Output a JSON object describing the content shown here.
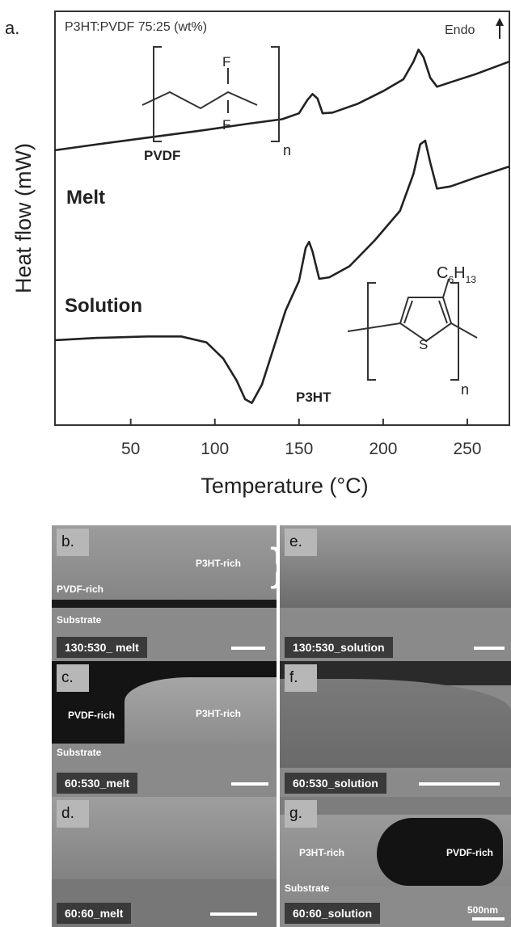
{
  "panel_a": {
    "letter": "a.",
    "composition_label": "P3HT:PVDF 75:25 (wt%)",
    "endo_label": "Endo",
    "pvdf_label": "PVDF",
    "p3ht_label": "P3HT",
    "melt_label": "Melt",
    "solution_label": "Solution",
    "pvdf_atom_f": "F",
    "n_subscript": "n",
    "c6h13_c": "C",
    "c6h13_6": "6",
    "c6h13_h": "H",
    "c6h13_13": "13",
    "thiophene_s": "S"
  },
  "chart_data": {
    "type": "line",
    "title": "P3HT:PVDF 75:25 (wt%)",
    "xlabel": "Temperature (°C)",
    "ylabel": "Heat flow (mW)",
    "xlim": [
      5,
      275
    ],
    "x_ticks": [
      50,
      100,
      150,
      200,
      250
    ],
    "y_ticks": [],
    "grid": false,
    "series": [
      {
        "name": "Melt",
        "points": [
          [
            5,
            -0.98
          ],
          [
            30,
            -0.9
          ],
          [
            60,
            -0.81
          ],
          [
            90,
            -0.72
          ],
          [
            120,
            -0.62
          ],
          [
            140,
            -0.56
          ],
          [
            150,
            -0.48
          ],
          [
            155,
            -0.3
          ],
          [
            158,
            -0.22
          ],
          [
            161,
            -0.28
          ],
          [
            164,
            -0.48
          ],
          [
            170,
            -0.47
          ],
          [
            185,
            -0.35
          ],
          [
            200,
            -0.18
          ],
          [
            212,
            -0.02
          ],
          [
            218,
            0.22
          ],
          [
            221,
            0.38
          ],
          [
            224,
            0.28
          ],
          [
            228,
            0.0
          ],
          [
            232,
            -0.12
          ],
          [
            240,
            -0.06
          ],
          [
            255,
            0.05
          ],
          [
            275,
            0.22
          ]
        ]
      },
      {
        "name": "Solution",
        "points": [
          [
            5,
            -3.55
          ],
          [
            30,
            -3.52
          ],
          [
            60,
            -3.5
          ],
          [
            80,
            -3.5
          ],
          [
            95,
            -3.58
          ],
          [
            105,
            -3.8
          ],
          [
            113,
            -4.1
          ],
          [
            118,
            -4.35
          ],
          [
            122,
            -4.4
          ],
          [
            128,
            -4.15
          ],
          [
            135,
            -3.65
          ],
          [
            142,
            -3.15
          ],
          [
            150,
            -2.75
          ],
          [
            154,
            -2.3
          ],
          [
            156,
            -2.22
          ],
          [
            158,
            -2.35
          ],
          [
            162,
            -2.72
          ],
          [
            168,
            -2.7
          ],
          [
            180,
            -2.55
          ],
          [
            195,
            -2.2
          ],
          [
            210,
            -1.8
          ],
          [
            218,
            -1.3
          ],
          [
            222,
            -0.9
          ],
          [
            225,
            -0.85
          ],
          [
            228,
            -1.15
          ],
          [
            232,
            -1.5
          ],
          [
            240,
            -1.47
          ],
          [
            255,
            -1.35
          ],
          [
            275,
            -1.2
          ]
        ]
      }
    ]
  },
  "sem_panels": [
    {
      "letter": "b.",
      "caption": "130:530_ melt",
      "labels": [
        "P3HT-rich",
        "PVDF-rich",
        "Substrate"
      ]
    },
    {
      "letter": "e.",
      "caption": "130:530_solution",
      "labels": []
    },
    {
      "letter": "c.",
      "caption": "60:530_melt",
      "labels": [
        "PVDF-rich",
        "P3HT-rich",
        "Substrate"
      ]
    },
    {
      "letter": "f.",
      "caption": "60:530_solution",
      "labels": []
    },
    {
      "letter": "d.",
      "caption": "60:60_melt",
      "labels": []
    },
    {
      "letter": "g.",
      "caption": "60:60_solution",
      "labels": [
        "P3HT-rich",
        "PVDF-rich",
        "Substrate"
      ],
      "scale_label": "500nm"
    }
  ]
}
